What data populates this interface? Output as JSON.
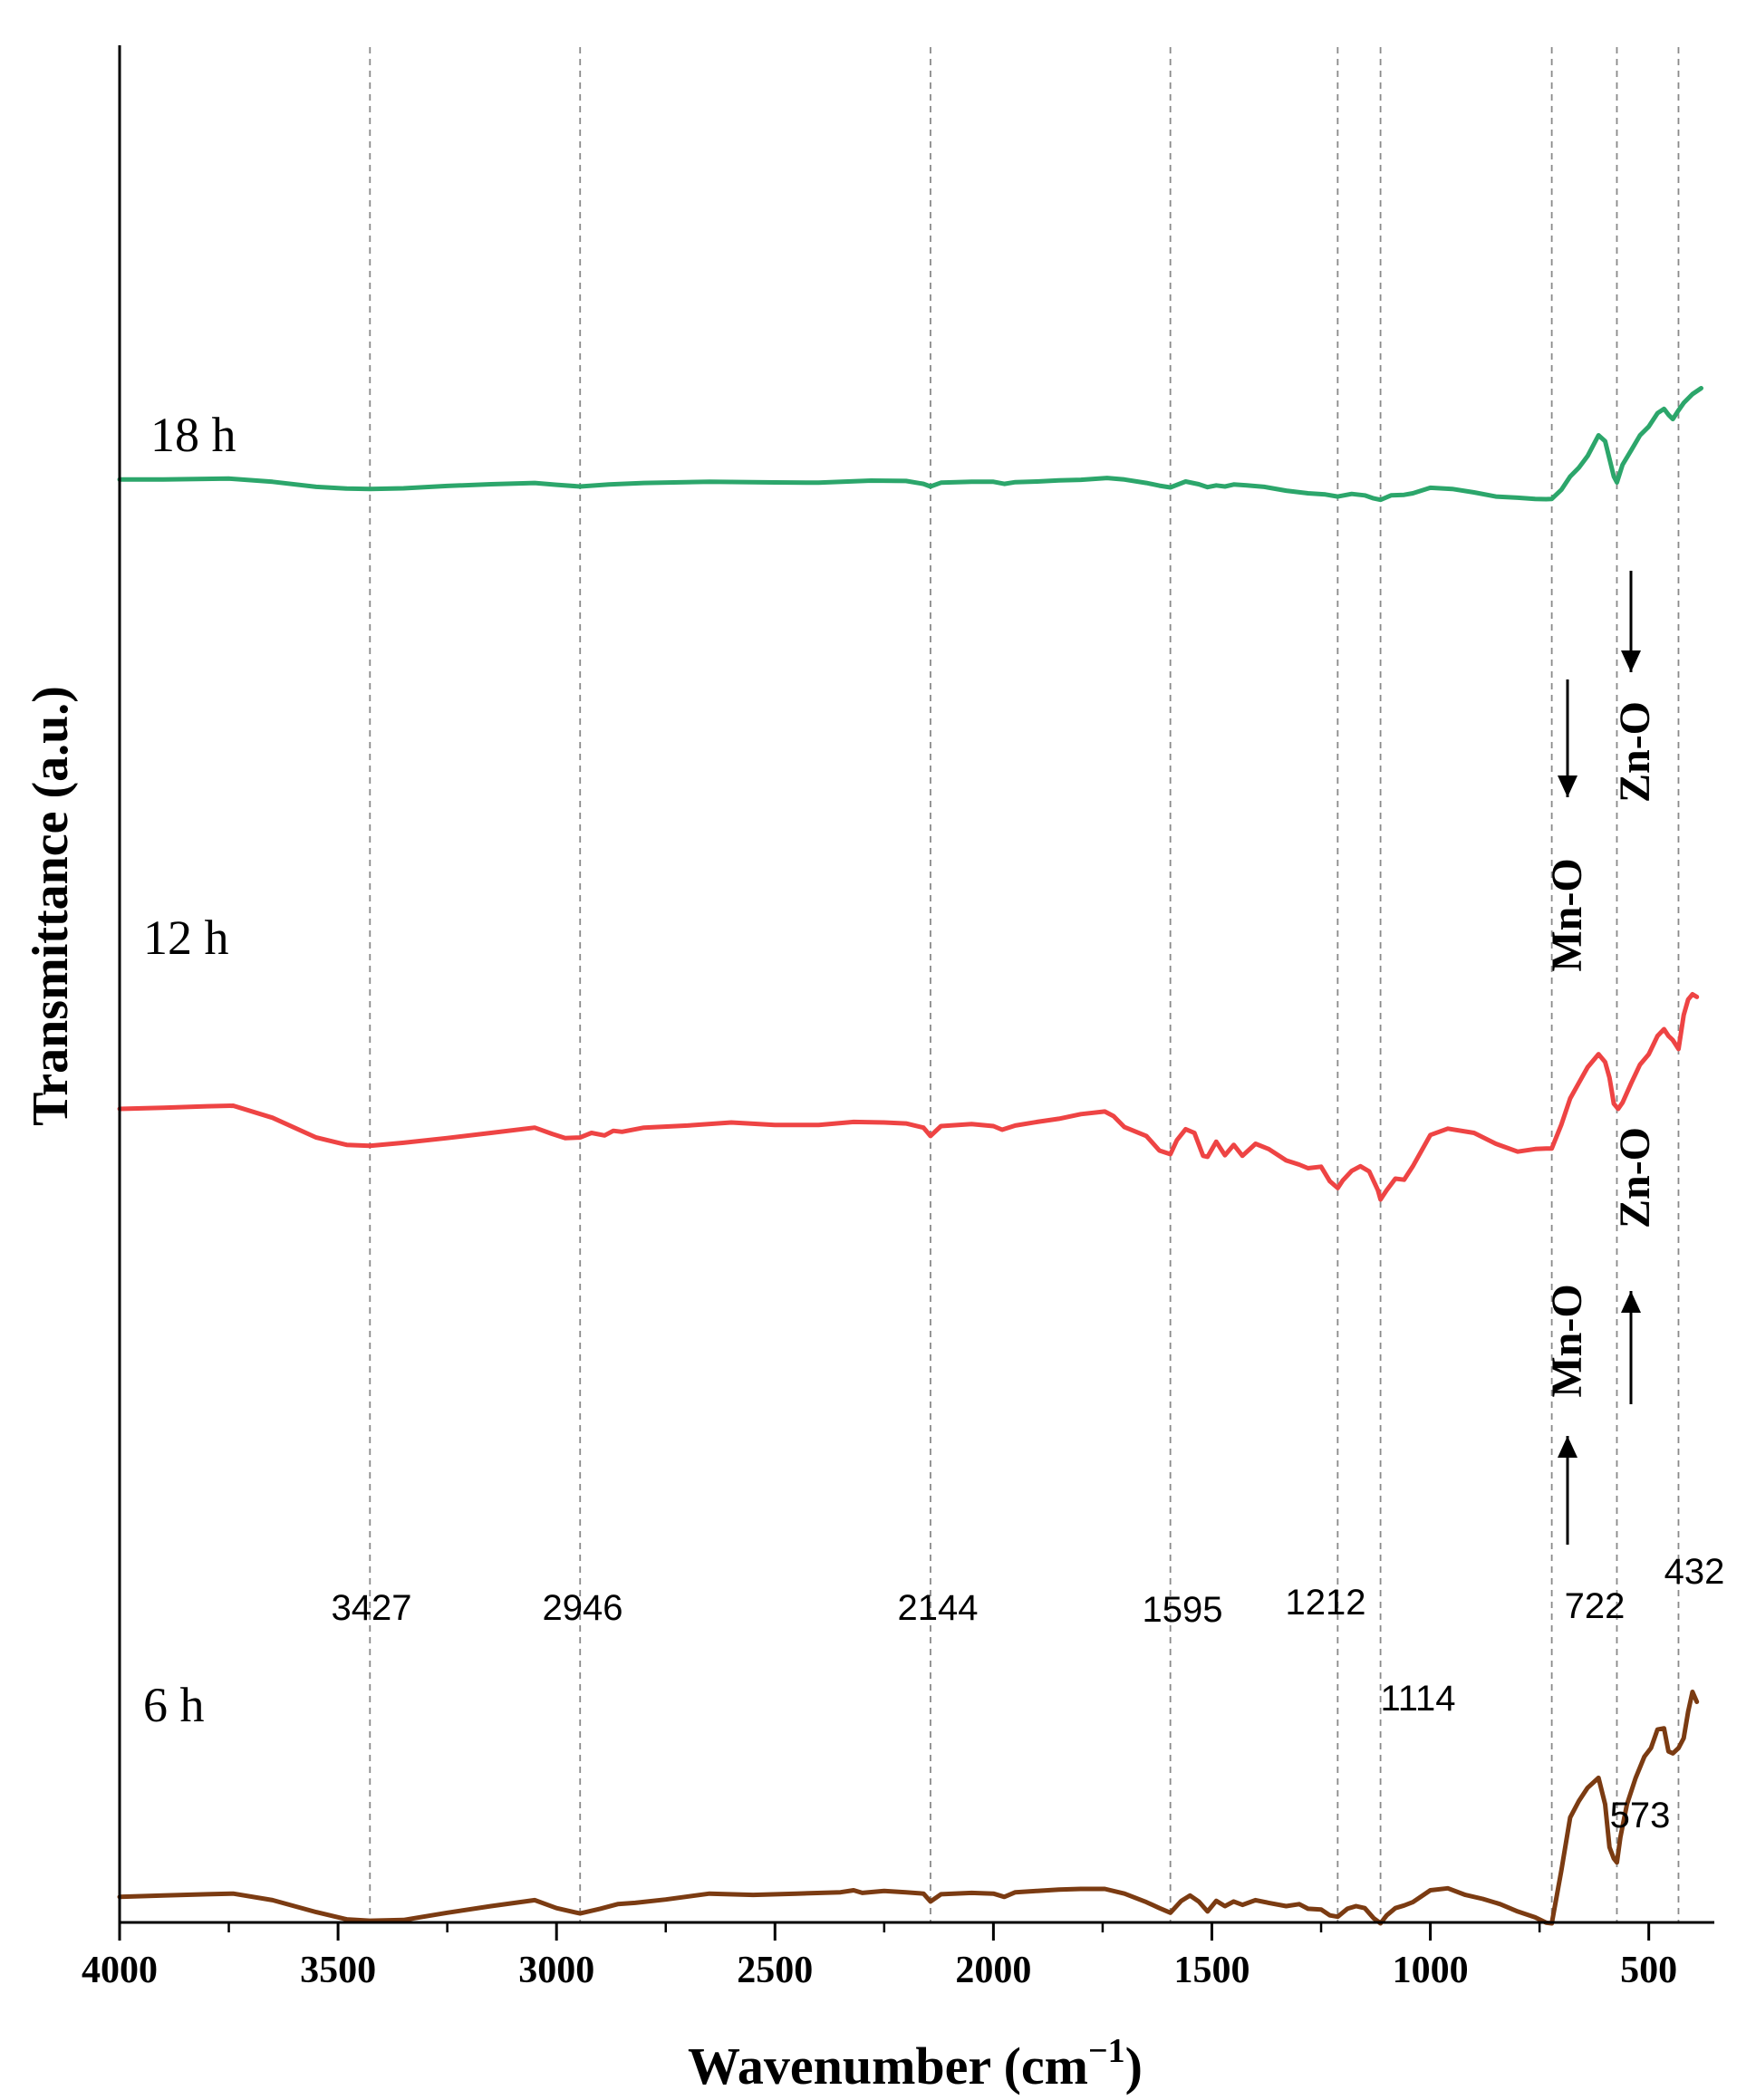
{
  "chart_data": {
    "type": "line",
    "title": "",
    "xlabel": "Wavenumber (cm",
    "xlabel_sup": "−1",
    "xlabel_close": ")",
    "ylabel": "Transmittance (a.u.)",
    "xlim": [
      4000,
      350
    ],
    "x_reversed": true,
    "ylim": [
      0,
      100
    ],
    "grid": false,
    "x_ticks": [
      4000,
      3500,
      3000,
      2500,
      2000,
      1500,
      1000,
      500
    ],
    "x_tick_labels": [
      "4000",
      "3500",
      "3000",
      "2500",
      "2000",
      "1500",
      "1000",
      "500"
    ],
    "reference_lines": [
      3427,
      2946,
      2144,
      1595,
      1212,
      1114,
      722,
      573,
      432
    ],
    "peak_labels": [
      {
        "text": "3427",
        "x": 3427
      },
      {
        "text": "2946",
        "x": 2946
      },
      {
        "text": "2144",
        "x": 2144
      },
      {
        "text": "1595",
        "x": 1595
      },
      {
        "text": "1212",
        "x": 1212
      },
      {
        "text": "1114",
        "x": 1114
      },
      {
        "text": "722",
        "x": 722
      },
      {
        "text": "573",
        "x": 573
      },
      {
        "text": "432",
        "x": 432
      }
    ],
    "series": [
      {
        "name": "18 h",
        "color": "#2ca66b",
        "x": [
          4000,
          3900,
          3750,
          3650,
          3550,
          3480,
          3427,
          3350,
          3250,
          3150,
          3050,
          3000,
          2946,
          2880,
          2800,
          2650,
          2500,
          2400,
          2320,
          2280,
          2200,
          2160,
          2144,
          2120,
          2050,
          2000,
          1975,
          1950,
          1900,
          1850,
          1800,
          1740,
          1700,
          1650,
          1620,
          1595,
          1560,
          1530,
          1510,
          1490,
          1470,
          1450,
          1420,
          1380,
          1330,
          1280,
          1240,
          1212,
          1180,
          1150,
          1130,
          1114,
          1090,
          1060,
          1040,
          1000,
          950,
          900,
          850,
          800,
          760,
          735,
          722,
          700,
          680,
          660,
          640,
          615,
          600,
          590,
          580,
          573,
          560,
          540,
          520,
          500,
          480,
          465,
          455,
          445,
          432,
          420,
          400,
          380
        ],
        "y": [
          71.0,
          71.0,
          71.3,
          70.2,
          68.5,
          67.9,
          67.8,
          68.0,
          68.8,
          69.4,
          69.8,
          69.2,
          68.6,
          69.3,
          69.8,
          70.2,
          70.0,
          69.9,
          70.4,
          70.6,
          70.5,
          69.5,
          68.6,
          69.9,
          70.2,
          70.2,
          69.5,
          70.1,
          70.3,
          70.7,
          70.9,
          71.5,
          71.0,
          69.8,
          68.9,
          68.3,
          70.3,
          69.4,
          68.4,
          69.0,
          68.6,
          69.3,
          69.0,
          68.5,
          67.2,
          66.3,
          65.9,
          65.2,
          66.1,
          65.6,
          64.6,
          64.1,
          65.6,
          65.8,
          66.3,
          68.2,
          67.8,
          66.6,
          65.2,
          64.8,
          64.4,
          64.3,
          64.4,
          67.5,
          72.0,
          75.0,
          79.0,
          86.0,
          84.0,
          78.0,
          72.0,
          70.0,
          76.0,
          81.0,
          86.0,
          89.0,
          93.5,
          95.0,
          93.0,
          91.5,
          94.5,
          97.0,
          100.0,
          102.0
        ]
      },
      {
        "name": "12 h",
        "color": "#ee4444",
        "x": [
          4000,
          3900,
          3800,
          3740,
          3650,
          3550,
          3480,
          3427,
          3350,
          3250,
          3150,
          3050,
          3010,
          2980,
          2946,
          2920,
          2890,
          2870,
          2850,
          2800,
          2700,
          2600,
          2500,
          2400,
          2320,
          2250,
          2200,
          2160,
          2144,
          2120,
          2050,
          2000,
          1980,
          1950,
          1900,
          1850,
          1800,
          1745,
          1725,
          1700,
          1650,
          1620,
          1595,
          1580,
          1560,
          1540,
          1520,
          1510,
          1490,
          1470,
          1450,
          1430,
          1400,
          1370,
          1330,
          1300,
          1280,
          1250,
          1230,
          1212,
          1200,
          1180,
          1160,
          1140,
          1120,
          1114,
          1100,
          1080,
          1060,
          1040,
          1000,
          960,
          900,
          850,
          800,
          760,
          735,
          722,
          700,
          680,
          660,
          640,
          615,
          600,
          590,
          580,
          570,
          560,
          540,
          520,
          500,
          480,
          465,
          455,
          445,
          432,
          420,
          410,
          400,
          390
        ],
        "y": [
          48.0,
          48.2,
          48.5,
          48.6,
          46.3,
          42.5,
          41.1,
          40.9,
          41.5,
          42.4,
          43.4,
          44.4,
          43.2,
          42.4,
          42.5,
          43.4,
          42.9,
          43.8,
          43.6,
          44.4,
          44.8,
          45.4,
          44.9,
          44.9,
          45.5,
          45.4,
          45.2,
          44.4,
          42.8,
          44.7,
          45.1,
          44.7,
          44.0,
          44.8,
          45.5,
          46.1,
          47.0,
          47.5,
          46.6,
          44.5,
          42.8,
          40.0,
          39.3,
          42.0,
          44.1,
          43.4,
          39.0,
          38.8,
          41.7,
          39.1,
          41.1,
          39.0,
          41.3,
          40.3,
          38.1,
          37.3,
          36.6,
          36.9,
          34.1,
          32.8,
          34.3,
          36.1,
          37.0,
          36.0,
          32.4,
          30.6,
          32.4,
          34.6,
          34.4,
          37.0,
          43.0,
          44.2,
          43.4,
          41.3,
          39.8,
          40.3,
          40.4,
          40.4,
          45.0,
          50.0,
          53.0,
          56.0,
          58.5,
          57.0,
          54.0,
          49.0,
          48.0,
          49.2,
          53.0,
          56.5,
          58.5,
          62.0,
          63.3,
          62.0,
          61.2,
          59.5,
          66.0,
          69.0,
          70.0,
          69.5
        ]
      },
      {
        "name": "6 h",
        "color": "#7b3b12",
        "x": [
          4000,
          3900,
          3800,
          3740,
          3650,
          3550,
          3480,
          3427,
          3350,
          3250,
          3150,
          3050,
          3000,
          2946,
          2900,
          2860,
          2820,
          2750,
          2650,
          2550,
          2450,
          2350,
          2320,
          2300,
          2250,
          2200,
          2160,
          2144,
          2120,
          2050,
          2000,
          1975,
          1950,
          1900,
          1850,
          1800,
          1745,
          1700,
          1650,
          1620,
          1595,
          1570,
          1550,
          1530,
          1510,
          1490,
          1470,
          1450,
          1430,
          1400,
          1370,
          1330,
          1300,
          1280,
          1250,
          1230,
          1212,
          1190,
          1170,
          1150,
          1130,
          1114,
          1100,
          1080,
          1060,
          1040,
          1000,
          960,
          920,
          880,
          840,
          800,
          760,
          735,
          722,
          700,
          680,
          660,
          640,
          615,
          600,
          590,
          580,
          573,
          565,
          550,
          530,
          510,
          495,
          480,
          465,
          455,
          445,
          432,
          420,
          410,
          400,
          390
        ],
        "y": [
          4.0,
          4.2,
          4.4,
          4.5,
          3.5,
          1.7,
          0.6,
          0.4,
          0.5,
          1.6,
          2.6,
          3.5,
          2.3,
          1.5,
          2.2,
          2.9,
          3.1,
          3.6,
          4.5,
          4.3,
          4.5,
          4.7,
          5.0,
          4.6,
          4.9,
          4.7,
          4.5,
          3.3,
          4.4,
          4.6,
          4.5,
          4.0,
          4.7,
          4.9,
          5.1,
          5.2,
          5.2,
          4.5,
          3.2,
          2.3,
          1.6,
          3.4,
          4.2,
          3.3,
          1.8,
          3.4,
          2.6,
          3.3,
          2.8,
          3.5,
          3.1,
          2.6,
          2.9,
          2.2,
          2.1,
          1.2,
          1.0,
          2.2,
          2.6,
          2.3,
          0.8,
          0.0,
          1.2,
          2.3,
          2.7,
          3.2,
          5.0,
          5.3,
          4.3,
          3.7,
          2.9,
          1.8,
          0.9,
          0.1,
          0.0,
          8.0,
          16.0,
          18.5,
          20.5,
          22.0,
          18.0,
          11.5,
          9.8,
          9.2,
          13.0,
          18.0,
          22.0,
          25.2,
          26.5,
          29.3,
          29.5,
          26.0,
          25.7,
          26.5,
          28.0,
          32.0,
          35.0,
          33.5
        ]
      }
    ],
    "series_labels": [
      {
        "text": "18 h",
        "series": "18 h"
      },
      {
        "text": "12 h",
        "series": "12 h"
      },
      {
        "text": "6 h",
        "series": "6 h"
      }
    ],
    "annotations": [
      {
        "text": "Mn-O",
        "series": "12 h",
        "arrow": "down",
        "x": 722
      },
      {
        "text": "Zn-O",
        "series": "12 h",
        "arrow": "down",
        "x": 573
      },
      {
        "text": "Mn-O",
        "series": "6 h",
        "arrow": "up",
        "x": 722
      },
      {
        "text": "Zn-O",
        "series": "6 h",
        "arrow": "up",
        "x": 573
      }
    ]
  }
}
